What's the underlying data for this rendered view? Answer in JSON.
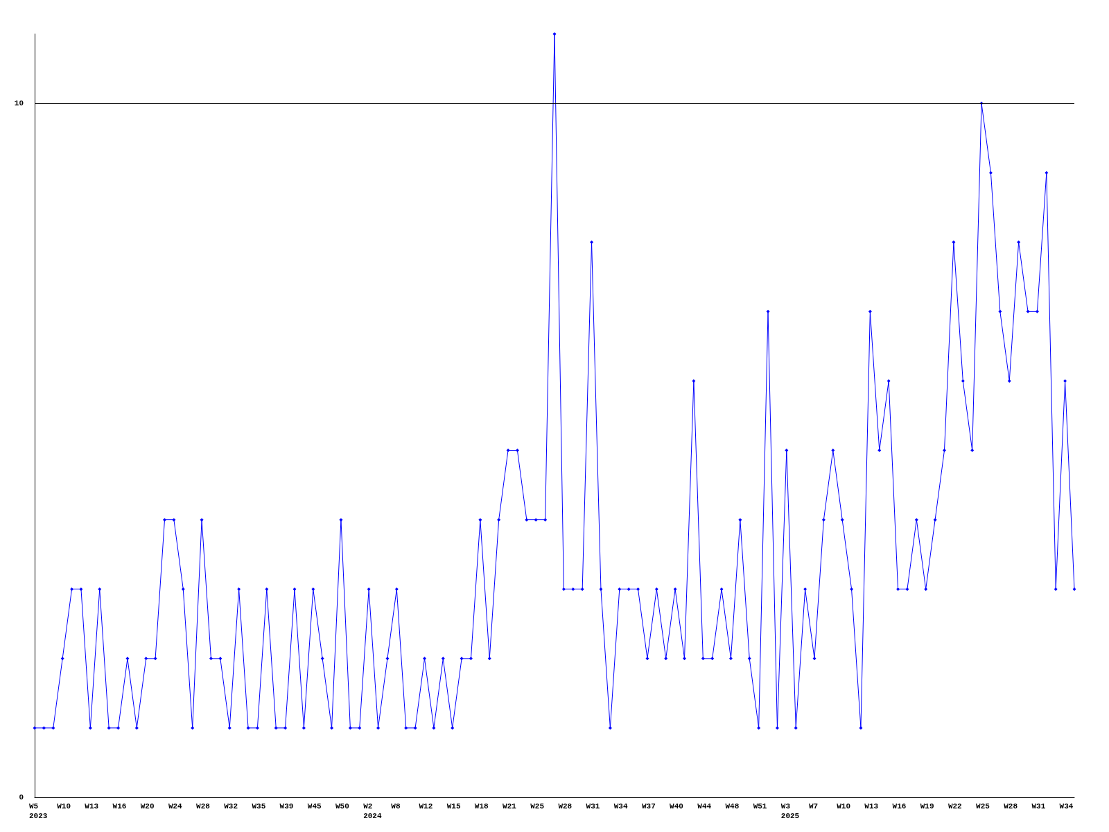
{
  "chart_data": {
    "type": "line",
    "categories": [
      "W5\n2023",
      null,
      null,
      "W10",
      null,
      null,
      "W13",
      null,
      null,
      "W16",
      null,
      null,
      "W20",
      null,
      null,
      "W24",
      null,
      null,
      "W28",
      null,
      null,
      "W32",
      null,
      null,
      "W35",
      null,
      null,
      "W39",
      null,
      null,
      "W45",
      null,
      null,
      "W50",
      null,
      null,
      "W2\n2024",
      null,
      null,
      "W8",
      null,
      null,
      "W12",
      null,
      null,
      "W15",
      null,
      null,
      "W18",
      null,
      null,
      "W21",
      null,
      null,
      "W25",
      null,
      null,
      "W28",
      null,
      null,
      "W31",
      null,
      null,
      "W34",
      null,
      null,
      "W37",
      null,
      null,
      "W40",
      null,
      null,
      "W44",
      null,
      null,
      "W48",
      null,
      null,
      "W51",
      null,
      null,
      "W3\n2025",
      null,
      null,
      "W7",
      null,
      null,
      "W10",
      null,
      null,
      "W13",
      null,
      null,
      "W16",
      null,
      null,
      "W19",
      null,
      null,
      "W22",
      null,
      null,
      "W25",
      null,
      null,
      "W28",
      null,
      null,
      "W31",
      null,
      null,
      "W34",
      null
    ],
    "series": [
      {
        "color": "#0000ff",
        "values": [
          1,
          1,
          1,
          2,
          3,
          3,
          1,
          3,
          1,
          1,
          2,
          1,
          2,
          2,
          4,
          4,
          3,
          1,
          4,
          2,
          2,
          1,
          3,
          1,
          1,
          3,
          1,
          1,
          3,
          1,
          3,
          2,
          1,
          4,
          1,
          1,
          3,
          1,
          2,
          3,
          1,
          1,
          2,
          1,
          2,
          1,
          2,
          2,
          4,
          2,
          4,
          5,
          5,
          4,
          4,
          4,
          11,
          3,
          3,
          3,
          8,
          3,
          1,
          3,
          3,
          3,
          2,
          3,
          2,
          3,
          2,
          6,
          2,
          2,
          3,
          2,
          4,
          2,
          1,
          7,
          1,
          5,
          1,
          3,
          2,
          4,
          5,
          4,
          3,
          1,
          7,
          5,
          6,
          3,
          3,
          4,
          3,
          4,
          5,
          8,
          6,
          5,
          10,
          9,
          7,
          6,
          8,
          7,
          7,
          9,
          3,
          6,
          3
        ]
      }
    ],
    "ylim": [
      0,
      11
    ],
    "yticks": [
      0,
      10
    ],
    "grid": "y",
    "marker": "diamond",
    "line_style": "solid"
  }
}
